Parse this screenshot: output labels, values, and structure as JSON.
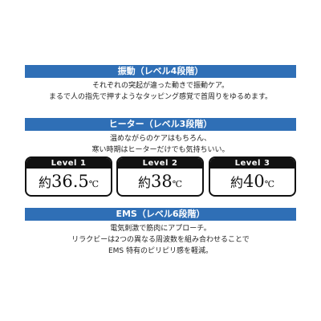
{
  "sections": [
    {
      "title": "振動（レベル4段階）",
      "lines": [
        "それぞれの突起が違った動きで振動ケア。",
        "まるで人の指先で押すようなタッピング感覚で首周りをゆるめます。"
      ]
    },
    {
      "title": "ヒーター（レベル3段階）",
      "lines": [
        "温めながらのケアはもちろん、",
        "寒い時期はヒーターだけでも気持ちいい。"
      ]
    },
    {
      "title": "EMS（レベル6段階）",
      "lines": [
        "電気刺激で筋肉にアプローチ。",
        "リラクビーは2つの異なる周波数を組み合わせることで",
        "EMS 特有のピリピリ感を軽減。"
      ]
    }
  ],
  "heater_levels": [
    {
      "label": "Level 1",
      "prefix": "約",
      "value": "36.5",
      "unit": "℃"
    },
    {
      "label": "Level 2",
      "prefix": "約",
      "value": "38",
      "unit": "℃"
    },
    {
      "label": "Level 3",
      "prefix": "約",
      "value": "40",
      "unit": "℃"
    }
  ],
  "colors": {
    "bar": "#2f6fb6",
    "card_header": "#111111"
  }
}
